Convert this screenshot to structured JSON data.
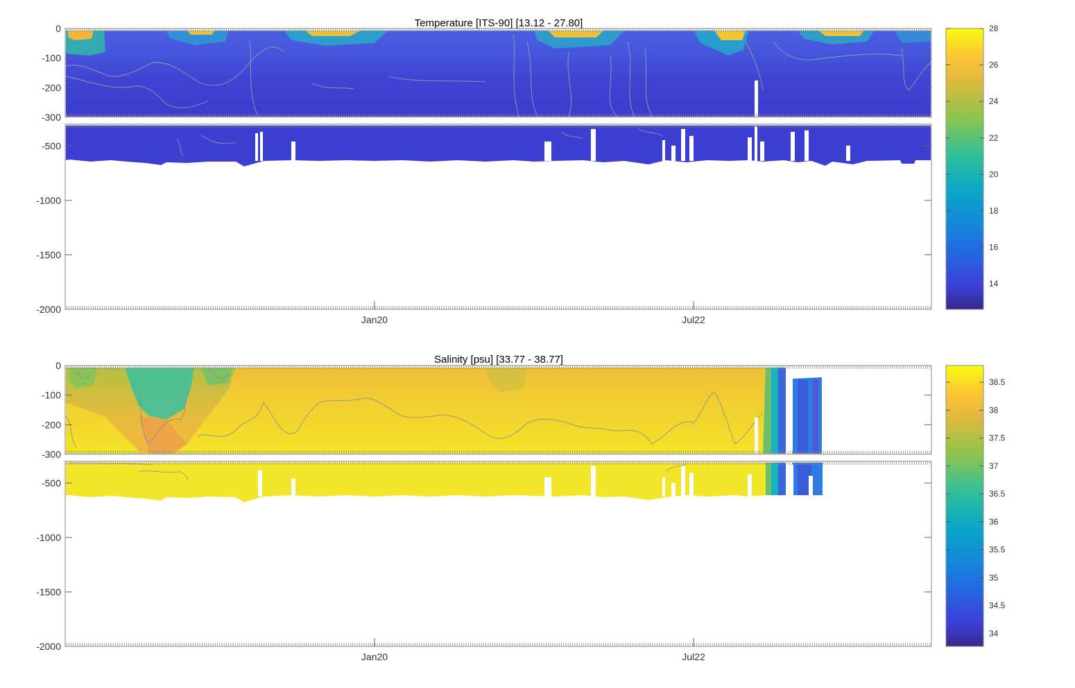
{
  "chart_data": [
    {
      "type": "heatmap",
      "name": "temperature",
      "title": "Temperature [ITS-90]   [13.12 - 27.80]",
      "x_ticks": [
        "Jan20",
        "Jul22"
      ],
      "y_ticks_upper": [
        "0",
        "-100",
        "-200",
        "-300"
      ],
      "y_ticks_lower": [
        "-500",
        "-1000",
        "-1500",
        "-2000"
      ],
      "ylim_upper": [
        -300,
        0
      ],
      "ylim_lower": [
        -2000,
        -300
      ],
      "colorbar_ticks": [
        "14",
        "16",
        "18",
        "20",
        "22",
        "24",
        "26",
        "28"
      ],
      "colorbar_values": [
        14,
        16,
        18,
        20,
        22,
        24,
        26,
        28
      ],
      "colorbar_range": [
        12.6,
        28.0
      ],
      "data_range": [
        13.12,
        27.8
      ],
      "data_extent": {
        "xmax_fraction": 1.0
      }
    },
    {
      "type": "heatmap",
      "name": "salinity",
      "title": "Salinity [psu]   [33.77 - 38.77]",
      "x_ticks": [
        "Jan20",
        "Jul22"
      ],
      "y_ticks_upper": [
        "0",
        "-100",
        "-200",
        "-300"
      ],
      "y_ticks_lower": [
        "-500",
        "-1000",
        "-1500",
        "-2000"
      ],
      "ylim_upper": [
        -300,
        0
      ],
      "ylim_lower": [
        -2000,
        -300
      ],
      "colorbar_ticks": [
        "34",
        "34.5",
        "35",
        "35.5",
        "36",
        "36.5",
        "37",
        "37.5",
        "38",
        "38.5"
      ],
      "colorbar_values": [
        34,
        34.5,
        35,
        35.5,
        36,
        36.5,
        37,
        37.5,
        38,
        38.5
      ],
      "colorbar_range": [
        33.77,
        38.8
      ],
      "data_range": [
        33.77,
        38.77
      ],
      "data_extent": {
        "xmax_fraction": 0.875
      }
    }
  ],
  "colors": {
    "parula": [
      "#352a87",
      "#3d3eda",
      "#1a78e0",
      "#0aa6c8",
      "#31c09a",
      "#8bc44f",
      "#e3b93c",
      "#fcc535",
      "#f9fb0e"
    ]
  }
}
